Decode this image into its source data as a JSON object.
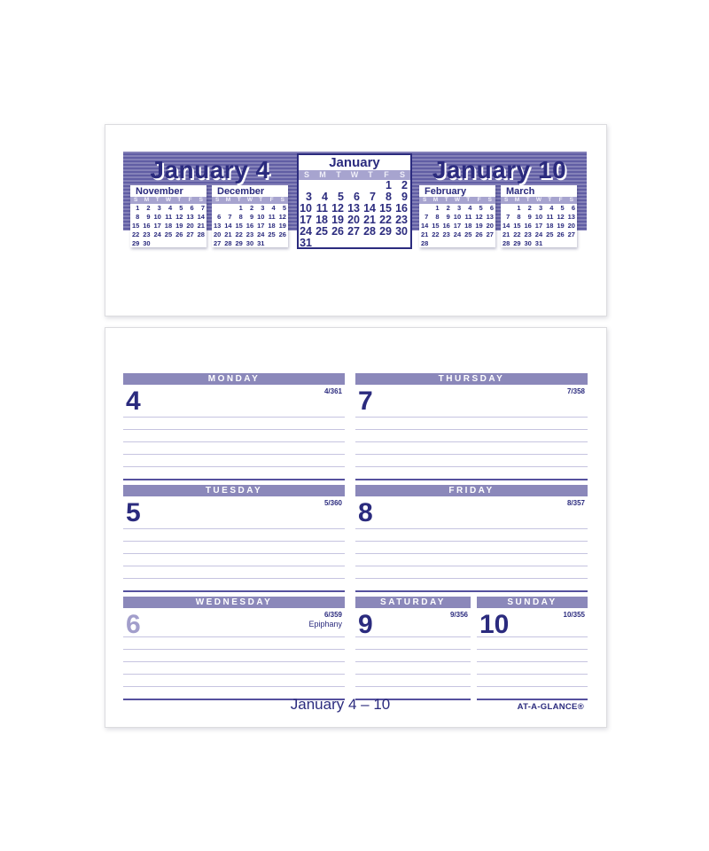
{
  "colors": {
    "navy": "#2b2b7e",
    "band_purple_light": "#8481b8",
    "band_purple_dark": "#615ea4",
    "day_bar_purple": "#8b88ba",
    "dow_strip_purple": "#a7a4cf",
    "light_day_number": "#a29ecb",
    "rule_line": "#c6c4e0",
    "rule_line_navy": "#55519e"
  },
  "top_card": {
    "left_title": "January 4",
    "right_title": "January 10",
    "day_headers": [
      "S",
      "M",
      "T",
      "W",
      "T",
      "F",
      "S"
    ],
    "center_month": {
      "title": "January",
      "weeks": [
        [
          "",
          "",
          "",
          "",
          "",
          "1",
          "2"
        ],
        [
          "3",
          "4",
          "5",
          "6",
          "7",
          "8",
          "9"
        ],
        [
          "10",
          "11",
          "12",
          "13",
          "14",
          "15",
          "16"
        ],
        [
          "17",
          "18",
          "19",
          "20",
          "21",
          "22",
          "23"
        ],
        [
          "24",
          "25",
          "26",
          "27",
          "28",
          "29",
          "30"
        ],
        [
          "31",
          "",
          "",
          "",
          "",
          "",
          ""
        ]
      ]
    },
    "mini_months": [
      {
        "name": "November",
        "weeks": [
          [
            "1",
            "2",
            "3",
            "4",
            "5",
            "6",
            "7"
          ],
          [
            "8",
            "9",
            "10",
            "11",
            "12",
            "13",
            "14"
          ],
          [
            "15",
            "16",
            "17",
            "18",
            "19",
            "20",
            "21"
          ],
          [
            "22",
            "23",
            "24",
            "25",
            "26",
            "27",
            "28"
          ],
          [
            "29",
            "30",
            "",
            "",
            "",
            "",
            ""
          ]
        ]
      },
      {
        "name": "December",
        "weeks": [
          [
            "",
            "",
            "1",
            "2",
            "3",
            "4",
            "5"
          ],
          [
            "6",
            "7",
            "8",
            "9",
            "10",
            "11",
            "12"
          ],
          [
            "13",
            "14",
            "15",
            "16",
            "17",
            "18",
            "19"
          ],
          [
            "20",
            "21",
            "22",
            "23",
            "24",
            "25",
            "26"
          ],
          [
            "27",
            "28",
            "29",
            "30",
            "31",
            "",
            ""
          ]
        ]
      },
      {
        "name": "February",
        "weeks": [
          [
            "",
            "1",
            "2",
            "3",
            "4",
            "5",
            "6"
          ],
          [
            "7",
            "8",
            "9",
            "10",
            "11",
            "12",
            "13"
          ],
          [
            "14",
            "15",
            "16",
            "17",
            "18",
            "19",
            "20"
          ],
          [
            "21",
            "22",
            "23",
            "24",
            "25",
            "26",
            "27"
          ],
          [
            "28",
            "",
            "",
            "",
            "",
            "",
            ""
          ]
        ]
      },
      {
        "name": "March",
        "weeks": [
          [
            "",
            "1",
            "2",
            "3",
            "4",
            "5",
            "6"
          ],
          [
            "7",
            "8",
            "9",
            "10",
            "11",
            "12",
            "13"
          ],
          [
            "14",
            "15",
            "16",
            "17",
            "18",
            "19",
            "20"
          ],
          [
            "21",
            "22",
            "23",
            "24",
            "25",
            "26",
            "27"
          ],
          [
            "28",
            "29",
            "30",
            "31",
            "",
            "",
            ""
          ]
        ]
      }
    ]
  },
  "bottom_card": {
    "days": [
      {
        "name": "MONDAY",
        "number": "4",
        "doy": "4/361",
        "note": ""
      },
      {
        "name": "TUESDAY",
        "number": "5",
        "doy": "5/360",
        "note": ""
      },
      {
        "name": "WEDNESDAY",
        "number": "6",
        "doy": "6/359",
        "note": "Epiphany"
      },
      {
        "name": "THURSDAY",
        "number": "7",
        "doy": "7/358",
        "note": ""
      },
      {
        "name": "FRIDAY",
        "number": "8",
        "doy": "8/357",
        "note": ""
      },
      {
        "name": "SATURDAY",
        "number": "9",
        "doy": "9/356",
        "note": ""
      },
      {
        "name": "SUNDAY",
        "number": "10",
        "doy": "10/355",
        "note": ""
      }
    ],
    "footer": {
      "week_range": "January 4 – 10",
      "brand": "AT-A-GLANCE®"
    }
  }
}
